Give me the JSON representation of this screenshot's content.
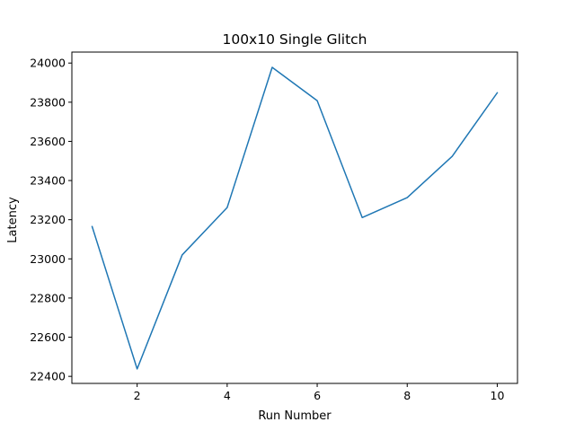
{
  "chart_data": {
    "type": "line",
    "title": "100x10 Single Glitch",
    "xlabel": "Run Number",
    "ylabel": "Latency",
    "xlim": [
      0.55,
      10.45
    ],
    "ylim": [
      22364,
      24056
    ],
    "xticks": [
      2,
      4,
      6,
      8,
      10
    ],
    "xtick_labels": [
      "2",
      "4",
      "6",
      "8",
      "10"
    ],
    "yticks": [
      22400,
      22600,
      22800,
      23000,
      23200,
      23400,
      23600,
      23800,
      24000
    ],
    "ytick_labels": [
      "22400",
      "22600",
      "22800",
      "23000",
      "23200",
      "23400",
      "23600",
      "23800",
      "24000"
    ],
    "grid": false,
    "series": [
      {
        "name": "Latency",
        "color": "#1f77b4",
        "x": [
          1,
          2,
          3,
          4,
          5,
          6,
          7,
          8,
          9,
          10
        ],
        "values": [
          23165,
          22438,
          23020,
          23262,
          23978,
          23808,
          23211,
          23313,
          23524,
          23848
        ]
      }
    ]
  }
}
